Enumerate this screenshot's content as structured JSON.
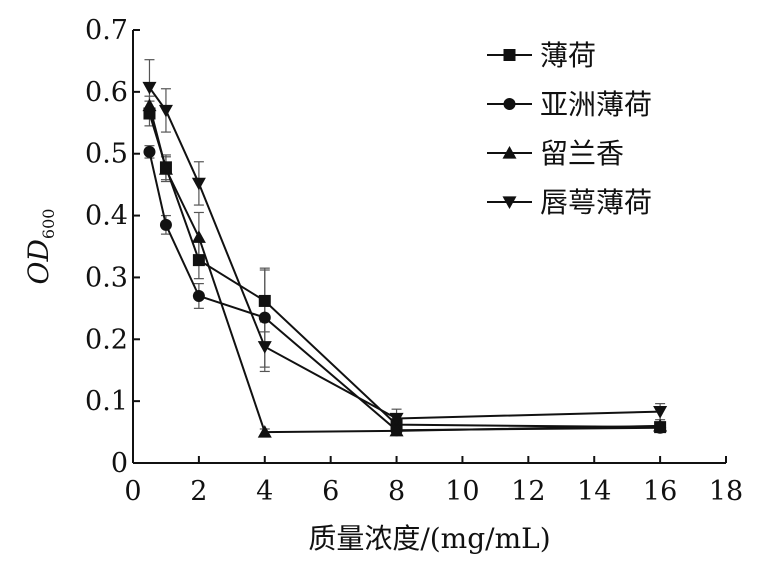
{
  "chart_data": {
    "type": "line",
    "x": [
      0.5,
      1,
      2,
      4,
      8,
      16
    ],
    "xlim": [
      0,
      18
    ],
    "ylim": [
      0,
      0.7
    ],
    "x_ticks": [
      0,
      2,
      4,
      6,
      8,
      10,
      12,
      14,
      16,
      18
    ],
    "y_ticks": [
      0,
      0.1,
      0.2,
      0.3,
      0.4,
      0.5,
      0.6,
      0.7
    ],
    "x_tick_labels": [
      "0",
      "2",
      "4",
      "6",
      "8",
      "10",
      "12",
      "14",
      "16",
      "18"
    ],
    "y_tick_labels": [
      "0",
      "0.1",
      "0.2",
      "0.3",
      "0.4",
      "0.5",
      "0.6",
      "0.7"
    ],
    "xlabel": "质量浓度/(mg/mL)",
    "ylabel_main": "OD",
    "ylabel_sub": "600",
    "legend_position": "top-right",
    "grid": false,
    "series": [
      {
        "name": "薄荷",
        "marker": "square",
        "values": [
          0.565,
          0.478,
          0.328,
          0.262,
          0.062,
          0.058
        ],
        "errors": [
          0.02,
          0.02,
          0.03,
          0.05,
          0.01,
          0.008
        ]
      },
      {
        "name": "亚洲薄荷",
        "marker": "circle",
        "values": [
          0.503,
          0.385,
          0.27,
          0.235,
          0.053,
          0.057
        ],
        "errors": [
          0.01,
          0.015,
          0.02,
          0.08,
          0.005,
          0.005
        ]
      },
      {
        "name": "留兰香",
        "marker": "triangle-up",
        "values": [
          0.578,
          0.475,
          0.365,
          0.05,
          0.052,
          0.06
        ],
        "errors": [
          0.015,
          0.02,
          0.04,
          0.005,
          0.005,
          0.005
        ]
      },
      {
        "name": "唇萼薄荷",
        "marker": "triangle-down",
        "values": [
          0.607,
          0.57,
          0.452,
          0.188,
          0.072,
          0.083
        ],
        "errors": [
          0.045,
          0.035,
          0.035,
          0.04,
          0.015,
          0.013
        ]
      }
    ],
    "line_color": "#111111",
    "background_color": "#ffffff"
  }
}
